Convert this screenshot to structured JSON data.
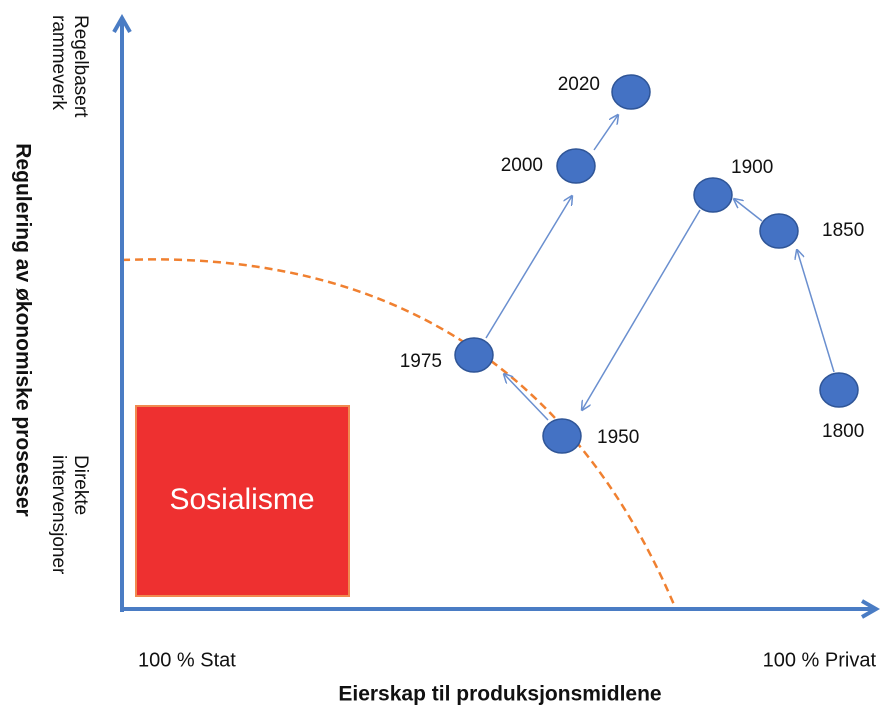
{
  "y_axis": {
    "top_label": [
      "Regelbasert",
      "rammeverk"
    ],
    "title": "Regulering av økonomiske prosesser",
    "bottom_label": [
      "Direkte",
      "intervensjoner"
    ]
  },
  "x_axis": {
    "left_label": "100 % Stat",
    "right_label": "100 % Privat",
    "title": "Eierskap til produksjonsmidlene"
  },
  "region": {
    "label": "Sosialisme"
  },
  "nodes": [
    {
      "label": "1800"
    },
    {
      "label": "1850"
    },
    {
      "label": "1900"
    },
    {
      "label": "1950"
    },
    {
      "label": "1975"
    },
    {
      "label": "2000"
    },
    {
      "label": "2020"
    }
  ]
}
